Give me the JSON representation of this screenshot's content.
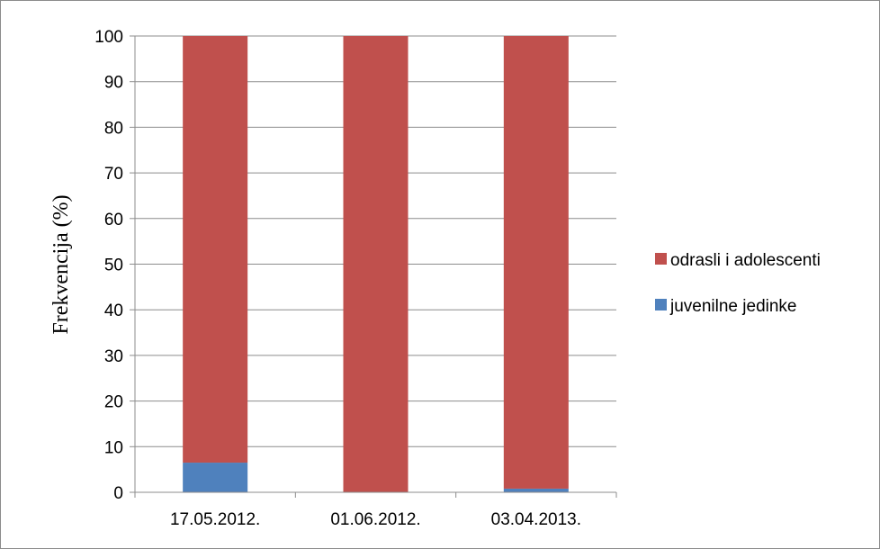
{
  "chart_data": {
    "type": "bar",
    "stacked": true,
    "title": "",
    "xlabel": "",
    "ylabel": "Frekvencija (%)",
    "ylim": [
      0,
      100
    ],
    "yticks": [
      0,
      10,
      20,
      30,
      40,
      50,
      60,
      70,
      80,
      90,
      100
    ],
    "grid": true,
    "legend_position": "right",
    "categories": [
      "17.05.2012.",
      "01.06.2012.",
      "03.04.2013."
    ],
    "series": [
      {
        "name": "juvenilne jedinke",
        "color": "#4F81BD",
        "values": [
          6.5,
          0,
          0.8
        ]
      },
      {
        "name": "odrasli i adolescenti",
        "color": "#C0504D",
        "values": [
          93.5,
          100,
          99.2
        ]
      }
    ]
  }
}
